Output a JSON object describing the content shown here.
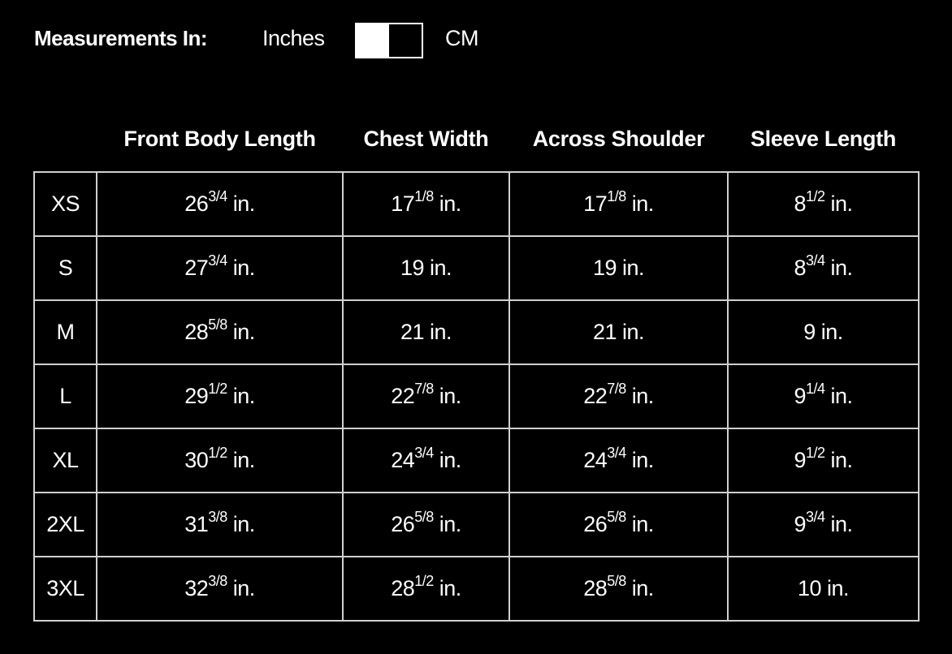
{
  "measurements": {
    "label": "Measurements In:",
    "option_left": "Inches",
    "option_right": "CM",
    "selected": "Inches"
  },
  "columns": [
    "Front Body Length",
    "Chest Width",
    "Across Shoulder",
    "Sleeve Length"
  ],
  "unit": "in.",
  "rows": [
    {
      "size": "XS",
      "cells": [
        {
          "n": "26",
          "f": "3/4"
        },
        {
          "n": "17",
          "f": "1/8"
        },
        {
          "n": "17",
          "f": "1/8"
        },
        {
          "n": "8",
          "f": "1/2"
        }
      ]
    },
    {
      "size": "S",
      "cells": [
        {
          "n": "27",
          "f": "3/4"
        },
        {
          "n": "19",
          "f": ""
        },
        {
          "n": "19",
          "f": ""
        },
        {
          "n": "8",
          "f": "3/4"
        }
      ]
    },
    {
      "size": "M",
      "cells": [
        {
          "n": "28",
          "f": "5/8"
        },
        {
          "n": "21",
          "f": ""
        },
        {
          "n": "21",
          "f": ""
        },
        {
          "n": "9",
          "f": ""
        }
      ]
    },
    {
      "size": "L",
      "cells": [
        {
          "n": "29",
          "f": "1/2"
        },
        {
          "n": "22",
          "f": "7/8"
        },
        {
          "n": "22",
          "f": "7/8"
        },
        {
          "n": "9",
          "f": "1/4"
        }
      ]
    },
    {
      "size": "XL",
      "cells": [
        {
          "n": "30",
          "f": "1/2"
        },
        {
          "n": "24",
          "f": "3/4"
        },
        {
          "n": "24",
          "f": "3/4"
        },
        {
          "n": "9",
          "f": "1/2"
        }
      ]
    },
    {
      "size": "2XL",
      "cells": [
        {
          "n": "31",
          "f": "3/8"
        },
        {
          "n": "26",
          "f": "5/8"
        },
        {
          "n": "26",
          "f": "5/8"
        },
        {
          "n": "9",
          "f": "3/4"
        }
      ]
    },
    {
      "size": "3XL",
      "cells": [
        {
          "n": "32",
          "f": "3/8"
        },
        {
          "n": "28",
          "f": "1/2"
        },
        {
          "n": "28",
          "f": "5/8"
        },
        {
          "n": "10",
          "f": ""
        }
      ]
    }
  ]
}
